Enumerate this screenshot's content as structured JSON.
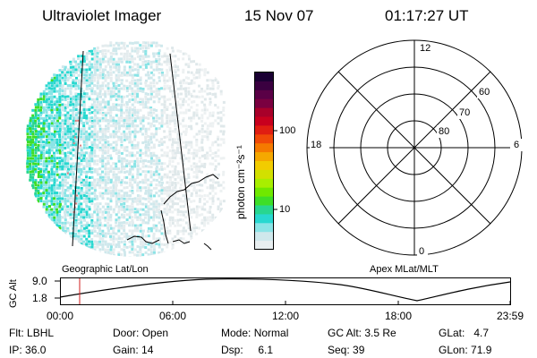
{
  "header": {
    "instrument": "Ultraviolet Imager",
    "date": "15 Nov 07",
    "time": "01:17:27 UT"
  },
  "colorbar": {
    "unit_label": "photon cm⁻²s⁻¹",
    "tick_labels": [
      "100",
      "10"
    ],
    "colors": [
      "#1a0033",
      "#3a0040",
      "#5a0046",
      "#7a0040",
      "#a8002a",
      "#c8001e",
      "#e01e12",
      "#f04a08",
      "#f57a00",
      "#f5a800",
      "#f2cc00",
      "#d2e000",
      "#a8ee00",
      "#70e800",
      "#3ede28",
      "#28d690",
      "#28d8d0",
      "#8ae4e6",
      "#cfe8ec",
      "#e8eef0"
    ]
  },
  "polar_plot": {
    "mlt_labels": {
      "top": "12",
      "left": "18",
      "right": "6",
      "bottom": "0"
    },
    "latitude_labels": [
      "60",
      "70",
      "80"
    ]
  },
  "timeline": {
    "left_caption": "Geographic Lat/Lon",
    "right_caption": "Apex MLat/MLT",
    "y_axis_label": "GC Alt",
    "y_max": "9.0",
    "y_min": "1.8",
    "x_labels": [
      "00:00",
      "06:00",
      "12:00",
      "18:00",
      "23:59"
    ]
  },
  "status": {
    "row1": [
      {
        "label": "Flt:",
        "value": "LBHL"
      },
      {
        "label": "Door:",
        "value": "Open"
      },
      {
        "label": "Mode:",
        "value": "Normal"
      },
      {
        "label": "GC Alt:",
        "value": "3.5 Re"
      },
      {
        "label": "GLat:",
        "value": "4.7"
      }
    ],
    "row2": [
      {
        "label": "IP:",
        "value": "36.0"
      },
      {
        "label": "Gain:",
        "value": "14"
      },
      {
        "label": "Dsp:",
        "value": "6.1"
      },
      {
        "label": "Seq:",
        "value": "39"
      },
      {
        "label": "GLon:",
        "value": "71.9"
      }
    ]
  }
}
